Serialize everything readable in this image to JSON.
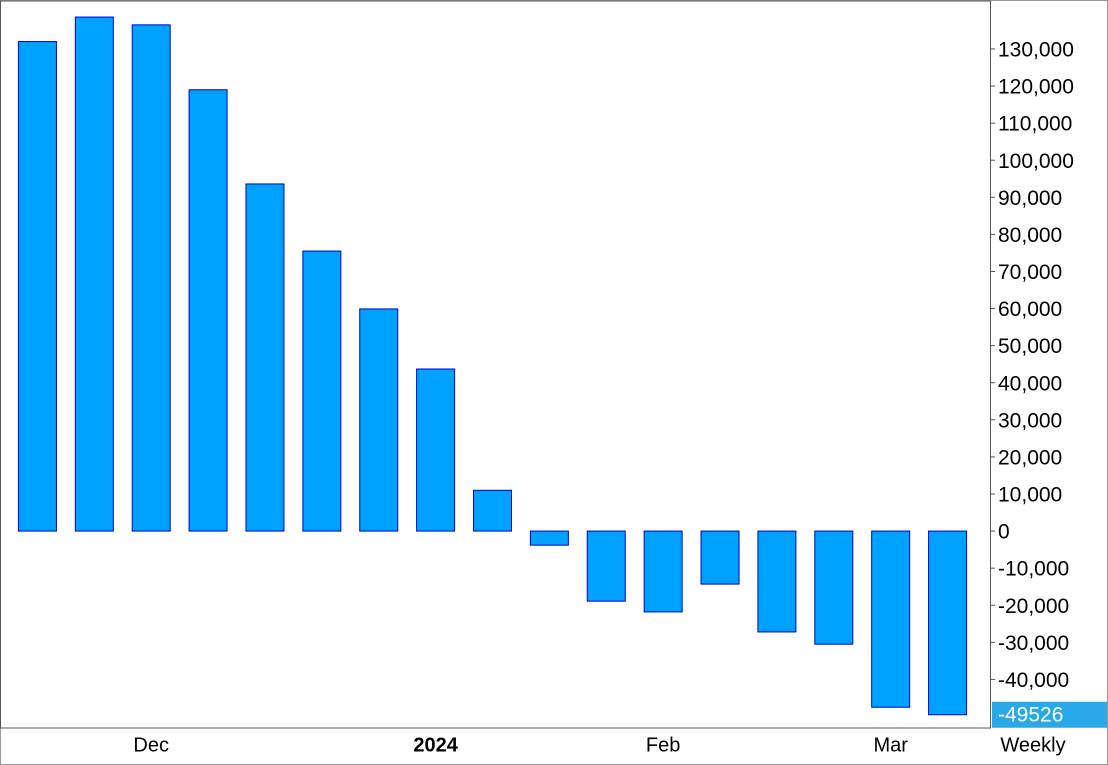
{
  "chart_data": {
    "type": "bar",
    "period": "Weekly",
    "categories": [
      null,
      null,
      "Dec",
      null,
      null,
      null,
      null,
      "2024",
      null,
      null,
      null,
      "Feb",
      null,
      null,
      null,
      "Mar",
      null
    ],
    "values": [
      132000,
      138600,
      136500,
      119000,
      93600,
      75500,
      59900,
      43700,
      11000,
      -3800,
      -18900,
      -21800,
      -14300,
      -27200,
      -30500,
      -47500,
      -49526
    ],
    "value_labels": [
      null,
      null,
      null,
      null,
      null,
      null,
      null,
      null,
      null,
      null,
      null,
      null,
      null,
      null,
      null,
      null,
      "-49526"
    ],
    "color": "#00a2ff",
    "edge_color": "#0000cc",
    "highlight_color": "#29a9e8",
    "ylim": [
      -53100,
      143200
    ],
    "yticks": [
      {
        "value": 130000,
        "label": "130,000"
      },
      {
        "value": 120000,
        "label": "120,000"
      },
      {
        "value": 110000,
        "label": "110,000"
      },
      {
        "value": 100000,
        "label": "100,000"
      },
      {
        "value": 90000,
        "label": "90,000"
      },
      {
        "value": 80000,
        "label": "80,000"
      },
      {
        "value": 70000,
        "label": "70,000"
      },
      {
        "value": 60000,
        "label": "60,000"
      },
      {
        "value": 50000,
        "label": "50,000"
      },
      {
        "value": 40000,
        "label": "40,000"
      },
      {
        "value": 30000,
        "label": "30,000"
      },
      {
        "value": 20000,
        "label": "20,000"
      },
      {
        "value": 10000,
        "label": "10,000"
      },
      0,
      {
        "value": -10000,
        "label": "-10,000"
      },
      {
        "value": -20000,
        "label": "-20,000"
      },
      {
        "value": -30000,
        "label": "-30,000"
      },
      {
        "value": -40000,
        "label": "-40,000"
      }
    ]
  }
}
